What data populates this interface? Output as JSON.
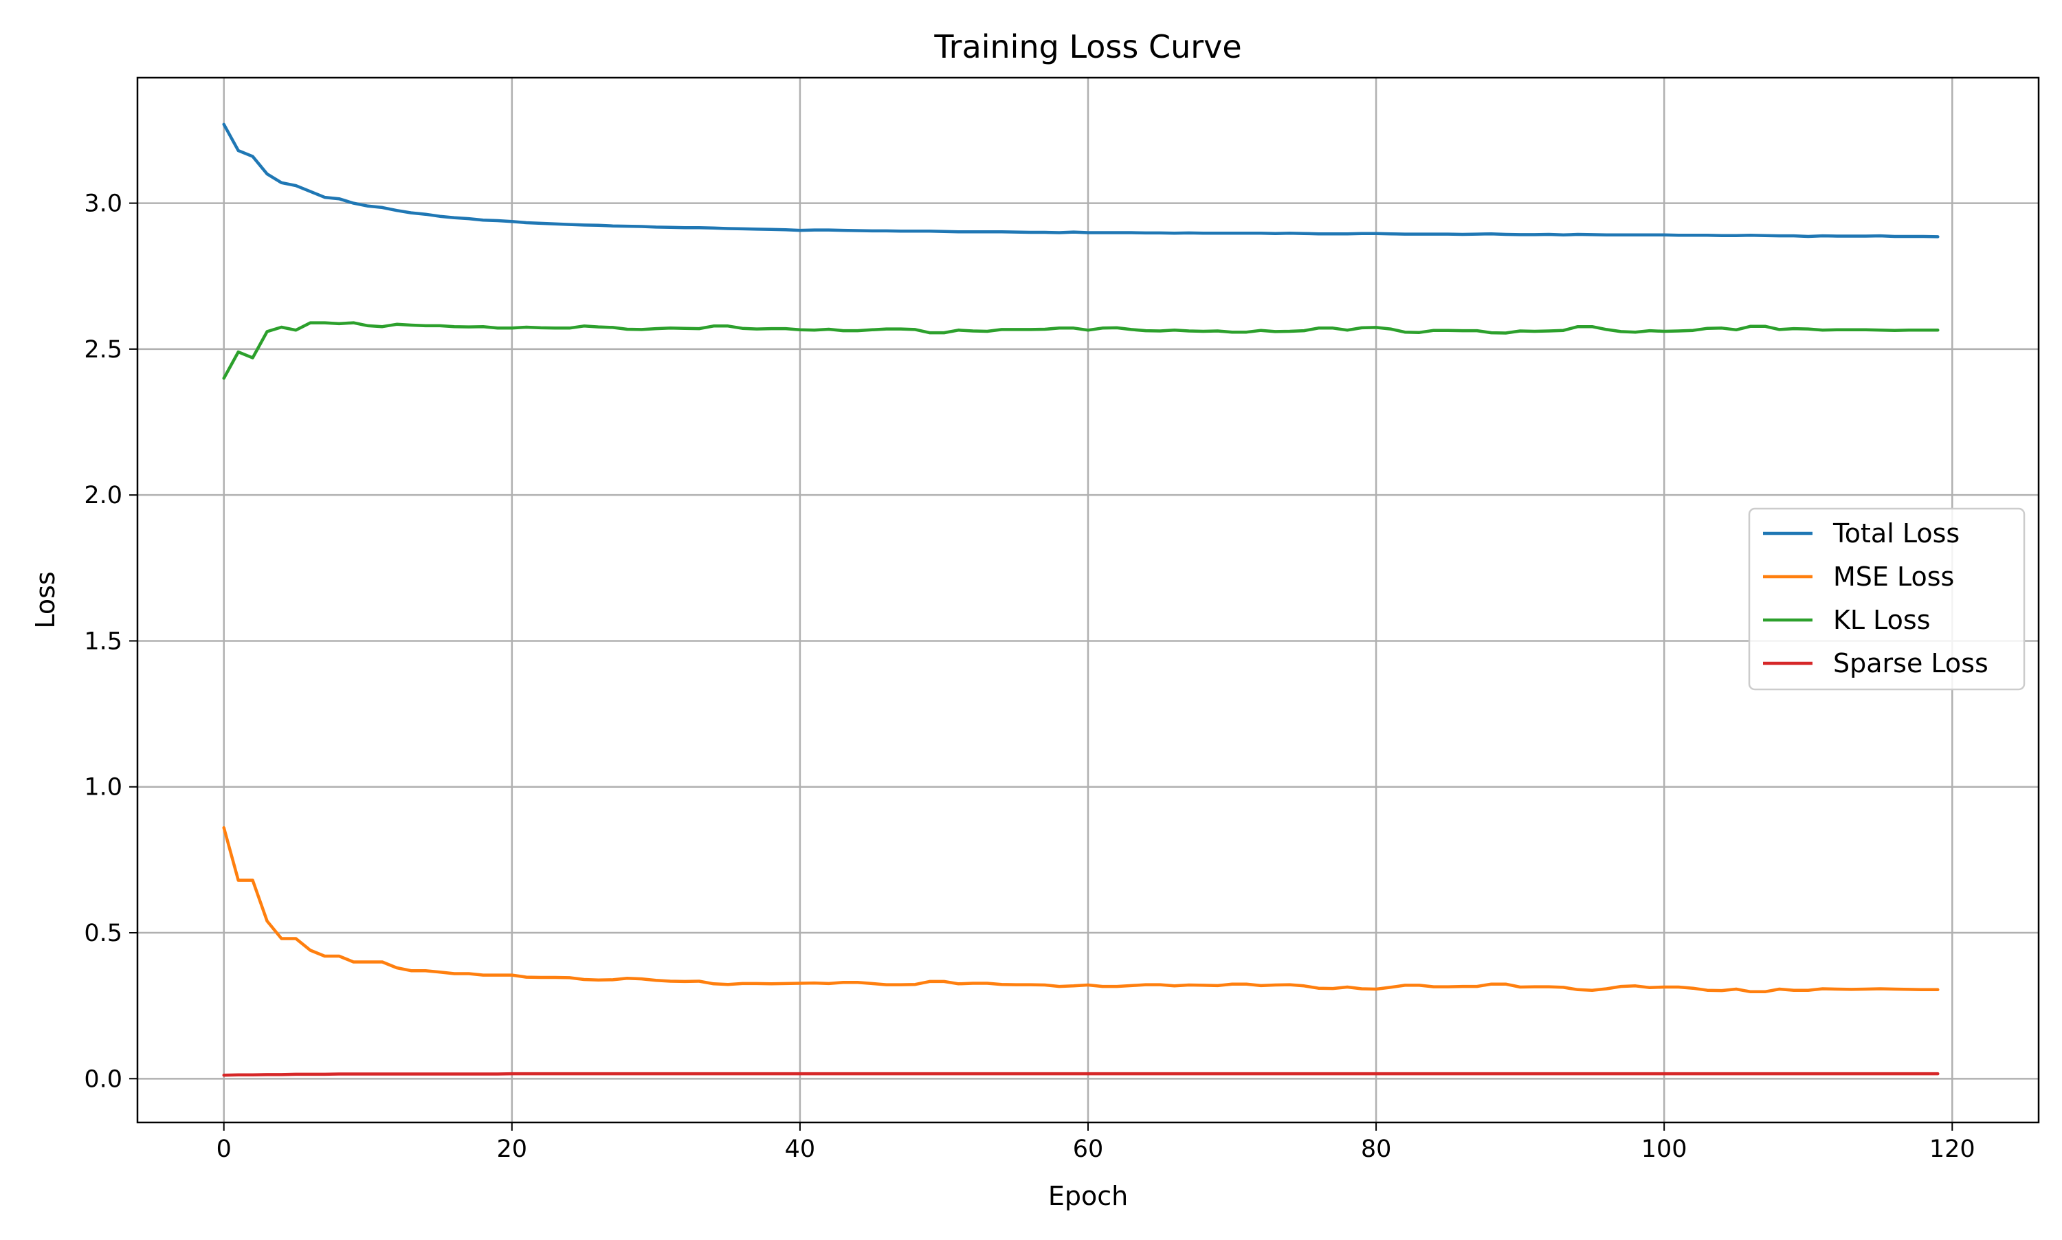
{
  "chart_data": {
    "type": "line",
    "title": "Training Loss Curve",
    "xlabel": "Epoch",
    "ylabel": "Loss",
    "xlim": [
      -6,
      126
    ],
    "ylim": [
      -0.15,
      3.43
    ],
    "xticks": [
      0,
      20,
      40,
      60,
      80,
      100,
      120
    ],
    "xtick_labels": [
      "0",
      "20",
      "40",
      "60",
      "80",
      "100",
      "120"
    ],
    "yticks": [
      0.0,
      0.5,
      1.0,
      1.5,
      2.0,
      2.5,
      3.0
    ],
    "ytick_labels": [
      "0.0",
      "0.5",
      "1.0",
      "1.5",
      "2.0",
      "2.5",
      "3.0"
    ],
    "grid": true,
    "legend_position": "center-right",
    "x": [
      0,
      1,
      2,
      3,
      4,
      5,
      6,
      7,
      8,
      9,
      10,
      11,
      12,
      13,
      14,
      15,
      16,
      17,
      18,
      19,
      20,
      21,
      22,
      23,
      24,
      25,
      26,
      27,
      28,
      29,
      30,
      31,
      32,
      33,
      34,
      35,
      36,
      37,
      38,
      39,
      40,
      41,
      42,
      43,
      44,
      45,
      46,
      47,
      48,
      49,
      50,
      51,
      52,
      53,
      54,
      55,
      56,
      57,
      58,
      59,
      60,
      61,
      62,
      63,
      64,
      65,
      66,
      67,
      68,
      69,
      70,
      71,
      72,
      73,
      74,
      75,
      76,
      77,
      78,
      79,
      80,
      81,
      82,
      83,
      84,
      85,
      86,
      87,
      88,
      89,
      90,
      91,
      92,
      93,
      94,
      95,
      96,
      97,
      98,
      99,
      100,
      101,
      102,
      103,
      104,
      105,
      106,
      107,
      108,
      109,
      110,
      111,
      112,
      113,
      114,
      115,
      116,
      117,
      118,
      119
    ],
    "series": [
      {
        "name": "Total Loss",
        "color": "#1f77b4",
        "values": [
          3.27,
          3.18,
          3.16,
          3.1,
          3.07,
          3.06,
          3.04,
          3.02,
          3.015,
          3.0,
          2.99,
          2.985,
          2.975,
          2.967,
          2.962,
          2.955,
          2.95,
          2.947,
          2.942,
          2.94,
          2.937,
          2.933,
          2.931,
          2.929,
          2.927,
          2.925,
          2.924,
          2.922,
          2.921,
          2.92,
          2.918,
          2.917,
          2.916,
          2.916,
          2.915,
          2.913,
          2.912,
          2.911,
          2.91,
          2.909,
          2.907,
          2.908,
          2.908,
          2.907,
          2.906,
          2.905,
          2.905,
          2.904,
          2.904,
          2.904,
          2.903,
          2.902,
          2.902,
          2.902,
          2.902,
          2.901,
          2.9,
          2.9,
          2.899,
          2.901,
          2.899,
          2.899,
          2.899,
          2.899,
          2.898,
          2.898,
          2.897,
          2.898,
          2.897,
          2.897,
          2.897,
          2.897,
          2.897,
          2.896,
          2.897,
          2.896,
          2.895,
          2.895,
          2.895,
          2.896,
          2.896,
          2.895,
          2.894,
          2.894,
          2.894,
          2.894,
          2.893,
          2.894,
          2.895,
          2.893,
          2.892,
          2.892,
          2.893,
          2.891,
          2.893,
          2.892,
          2.891,
          2.891,
          2.891,
          2.891,
          2.891,
          2.89,
          2.89,
          2.89,
          2.889,
          2.889,
          2.89,
          2.889,
          2.888,
          2.888,
          2.886,
          2.888,
          2.887,
          2.887,
          2.887,
          2.888,
          2.886,
          2.886,
          2.886,
          2.885
        ]
      },
      {
        "name": "MSE Loss",
        "color": "#ff7f0e",
        "values": [
          0.86,
          0.68,
          0.68,
          0.54,
          0.48,
          0.48,
          0.44,
          0.42,
          0.42,
          0.4,
          0.4,
          0.4,
          0.38,
          0.37,
          0.37,
          0.365,
          0.36,
          0.36,
          0.355,
          0.355,
          0.355,
          0.348,
          0.347,
          0.347,
          0.346,
          0.34,
          0.338,
          0.339,
          0.344,
          0.342,
          0.337,
          0.334,
          0.333,
          0.334,
          0.325,
          0.323,
          0.326,
          0.326,
          0.325,
          0.326,
          0.327,
          0.328,
          0.326,
          0.33,
          0.33,
          0.326,
          0.322,
          0.322,
          0.323,
          0.333,
          0.333,
          0.325,
          0.327,
          0.327,
          0.323,
          0.322,
          0.322,
          0.321,
          0.316,
          0.318,
          0.321,
          0.316,
          0.316,
          0.319,
          0.322,
          0.322,
          0.318,
          0.321,
          0.32,
          0.319,
          0.324,
          0.324,
          0.319,
          0.321,
          0.322,
          0.318,
          0.31,
          0.309,
          0.314,
          0.308,
          0.307,
          0.313,
          0.32,
          0.32,
          0.315,
          0.315,
          0.316,
          0.316,
          0.324,
          0.324,
          0.314,
          0.315,
          0.315,
          0.313,
          0.305,
          0.303,
          0.308,
          0.316,
          0.318,
          0.312,
          0.314,
          0.314,
          0.31,
          0.303,
          0.302,
          0.307,
          0.298,
          0.298,
          0.307,
          0.303,
          0.303,
          0.308,
          0.307,
          0.306,
          0.307,
          0.308,
          0.307,
          0.306,
          0.305,
          0.305
        ]
      },
      {
        "name": "KL Loss",
        "color": "#2ca02c",
        "values": [
          2.4,
          2.49,
          2.47,
          2.56,
          2.575,
          2.565,
          2.59,
          2.59,
          2.587,
          2.59,
          2.58,
          2.577,
          2.585,
          2.582,
          2.58,
          2.58,
          2.577,
          2.576,
          2.577,
          2.572,
          2.572,
          2.575,
          2.573,
          2.572,
          2.572,
          2.579,
          2.576,
          2.574,
          2.568,
          2.567,
          2.57,
          2.572,
          2.571,
          2.57,
          2.579,
          2.579,
          2.571,
          2.569,
          2.57,
          2.57,
          2.566,
          2.565,
          2.568,
          2.563,
          2.563,
          2.566,
          2.569,
          2.569,
          2.567,
          2.556,
          2.556,
          2.565,
          2.562,
          2.561,
          2.567,
          2.567,
          2.567,
          2.568,
          2.572,
          2.572,
          2.565,
          2.572,
          2.573,
          2.567,
          2.563,
          2.562,
          2.565,
          2.562,
          2.561,
          2.562,
          2.558,
          2.558,
          2.564,
          2.56,
          2.561,
          2.563,
          2.572,
          2.572,
          2.565,
          2.573,
          2.574,
          2.569,
          2.558,
          2.557,
          2.564,
          2.564,
          2.563,
          2.563,
          2.556,
          2.555,
          2.562,
          2.561,
          2.562,
          2.564,
          2.577,
          2.577,
          2.567,
          2.56,
          2.558,
          2.563,
          2.561,
          2.562,
          2.564,
          2.571,
          2.572,
          2.566,
          2.578,
          2.578,
          2.567,
          2.57,
          2.569,
          2.565,
          2.566,
          2.566,
          2.566,
          2.565,
          2.564,
          2.565,
          2.565,
          2.565
        ]
      },
      {
        "name": "Sparse Loss",
        "color": "#d62728",
        "values": [
          0.012,
          0.013,
          0.013,
          0.014,
          0.014,
          0.015,
          0.015,
          0.015,
          0.016,
          0.016,
          0.016,
          0.016,
          0.016,
          0.016,
          0.016,
          0.016,
          0.016,
          0.016,
          0.016,
          0.016,
          0.017,
          0.017,
          0.017,
          0.017,
          0.017,
          0.017,
          0.017,
          0.017,
          0.017,
          0.017,
          0.017,
          0.017,
          0.017,
          0.017,
          0.017,
          0.017,
          0.017,
          0.017,
          0.017,
          0.017,
          0.017,
          0.017,
          0.017,
          0.017,
          0.017,
          0.017,
          0.017,
          0.017,
          0.017,
          0.017,
          0.017,
          0.017,
          0.017,
          0.017,
          0.017,
          0.017,
          0.017,
          0.017,
          0.017,
          0.017,
          0.017,
          0.017,
          0.017,
          0.017,
          0.017,
          0.017,
          0.017,
          0.017,
          0.017,
          0.017,
          0.017,
          0.017,
          0.017,
          0.017,
          0.017,
          0.017,
          0.017,
          0.017,
          0.017,
          0.017,
          0.017,
          0.017,
          0.017,
          0.017,
          0.017,
          0.017,
          0.017,
          0.017,
          0.017,
          0.017,
          0.017,
          0.017,
          0.017,
          0.017,
          0.017,
          0.017,
          0.017,
          0.017,
          0.017,
          0.017,
          0.017,
          0.017,
          0.017,
          0.017,
          0.017,
          0.017,
          0.017,
          0.017,
          0.017,
          0.017,
          0.017,
          0.017,
          0.017,
          0.017,
          0.017,
          0.017,
          0.017,
          0.017,
          0.017,
          0.017
        ]
      }
    ]
  }
}
